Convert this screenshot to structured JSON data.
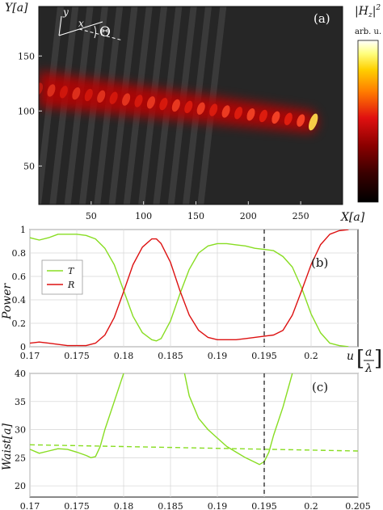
{
  "chart_data": [
    {
      "type": "heatmap",
      "panel_label": "(a)",
      "xlabel": "X[a]",
      "ylabel": "Y[a]",
      "x_ticks": [
        "50",
        "100",
        "150",
        "200",
        "250"
      ],
      "y_ticks": [
        "50",
        "100",
        "150"
      ],
      "xlim": [
        0,
        290
      ],
      "ylim": [
        15,
        195
      ],
      "colorbar": {
        "title": "|H_z|²",
        "unit": "arb. u.",
        "colors": [
          "#000000",
          "#3a0000",
          "#8b0000",
          "#e01010",
          "#ff7a00",
          "#ffd000",
          "#ffff80",
          "#ffffff"
        ]
      },
      "inset_axes": {
        "y": "y",
        "x": "x",
        "angle": "Θ"
      },
      "grating_stripes": 12,
      "beam": {
        "start": [
          0,
          120
        ],
        "end": [
          262,
          90
        ]
      }
    },
    {
      "type": "line",
      "panel_label": "(b)",
      "ylabel": "Power",
      "xlabel_var": "u",
      "xlabel_frac": {
        "num": "a",
        "den": "λ"
      },
      "xlim": [
        0.17,
        0.205
      ],
      "ylim": [
        0,
        1
      ],
      "x_ticks": [
        "0.17",
        "0.175",
        "0.18",
        "0.185",
        "0.19",
        "0.195",
        "0.2"
      ],
      "y_ticks": [
        "0",
        "0.2",
        "0.4",
        "0.6",
        "0.8",
        "1"
      ],
      "dashed_x": 0.195,
      "series": [
        {
          "name": "T",
          "color": "#88dd22",
          "x": [
            0.17,
            0.171,
            0.172,
            0.173,
            0.174,
            0.175,
            0.176,
            0.177,
            0.178,
            0.179,
            0.18,
            0.181,
            0.182,
            0.183,
            0.1835,
            0.184,
            0.185,
            0.186,
            0.187,
            0.188,
            0.189,
            0.19,
            0.191,
            0.192,
            0.193,
            0.194,
            0.195,
            0.196,
            0.197,
            0.198,
            0.199,
            0.2,
            0.201,
            0.202,
            0.203,
            0.204
          ],
          "y": [
            0.93,
            0.91,
            0.93,
            0.96,
            0.96,
            0.96,
            0.95,
            0.92,
            0.84,
            0.7,
            0.48,
            0.26,
            0.12,
            0.06,
            0.05,
            0.07,
            0.22,
            0.45,
            0.66,
            0.8,
            0.86,
            0.88,
            0.88,
            0.87,
            0.86,
            0.84,
            0.83,
            0.82,
            0.77,
            0.68,
            0.5,
            0.28,
            0.12,
            0.03,
            0.01,
            0.0
          ]
        },
        {
          "name": "R",
          "color": "#dd1111",
          "x": [
            0.17,
            0.171,
            0.172,
            0.173,
            0.174,
            0.175,
            0.176,
            0.177,
            0.178,
            0.179,
            0.18,
            0.181,
            0.182,
            0.183,
            0.1835,
            0.184,
            0.185,
            0.186,
            0.187,
            0.188,
            0.189,
            0.19,
            0.191,
            0.192,
            0.193,
            0.194,
            0.195,
            0.196,
            0.197,
            0.198,
            0.199,
            0.2,
            0.201,
            0.202,
            0.203,
            0.204
          ],
          "y": [
            0.03,
            0.04,
            0.03,
            0.02,
            0.01,
            0.01,
            0.01,
            0.03,
            0.1,
            0.25,
            0.47,
            0.7,
            0.85,
            0.92,
            0.92,
            0.88,
            0.72,
            0.48,
            0.27,
            0.14,
            0.08,
            0.06,
            0.06,
            0.06,
            0.07,
            0.08,
            0.09,
            0.1,
            0.14,
            0.27,
            0.48,
            0.7,
            0.87,
            0.96,
            0.99,
            1.0
          ]
        }
      ]
    },
    {
      "type": "line",
      "panel_label": "(c)",
      "ylabel": "Waist[a]",
      "xlim": [
        0.17,
        0.205
      ],
      "ylim": [
        18,
        40
      ],
      "x_ticks": [
        "0.17",
        "0.175",
        "0.18",
        "0.185",
        "0.19",
        "0.195",
        "0.2",
        "0.205"
      ],
      "y_ticks": [
        "20",
        "25",
        "30",
        "35",
        "40"
      ],
      "dashed_x": 0.195,
      "series": [
        {
          "color": "#88dd22",
          "style": "solid",
          "x": [
            0.17,
            0.171,
            0.172,
            0.173,
            0.174,
            0.175,
            0.176,
            0.1765,
            0.177,
            0.1775,
            0.178,
            0.179,
            0.18
          ],
          "y": [
            26.5,
            25.8,
            26.2,
            26.6,
            26.5,
            26.0,
            25.4,
            25.0,
            25.2,
            27.0,
            30.0,
            35.0,
            40.0
          ]
        },
        {
          "color": "#88dd22",
          "style": "solid",
          "x": [
            0.1865,
            0.187,
            0.188,
            0.189,
            0.19,
            0.191,
            0.192,
            0.193,
            0.194,
            0.1945,
            0.195,
            0.1955,
            0.196,
            0.197,
            0.198
          ],
          "y": [
            40.0,
            36.0,
            32.0,
            30.0,
            28.5,
            27.0,
            26.0,
            25.0,
            24.2,
            23.8,
            24.3,
            26.0,
            29.0,
            34.0,
            40.0
          ]
        },
        {
          "color": "#88dd22",
          "style": "dashed",
          "x": [
            0.17,
            0.205
          ],
          "y": [
            27.3,
            26.2
          ]
        }
      ]
    }
  ]
}
